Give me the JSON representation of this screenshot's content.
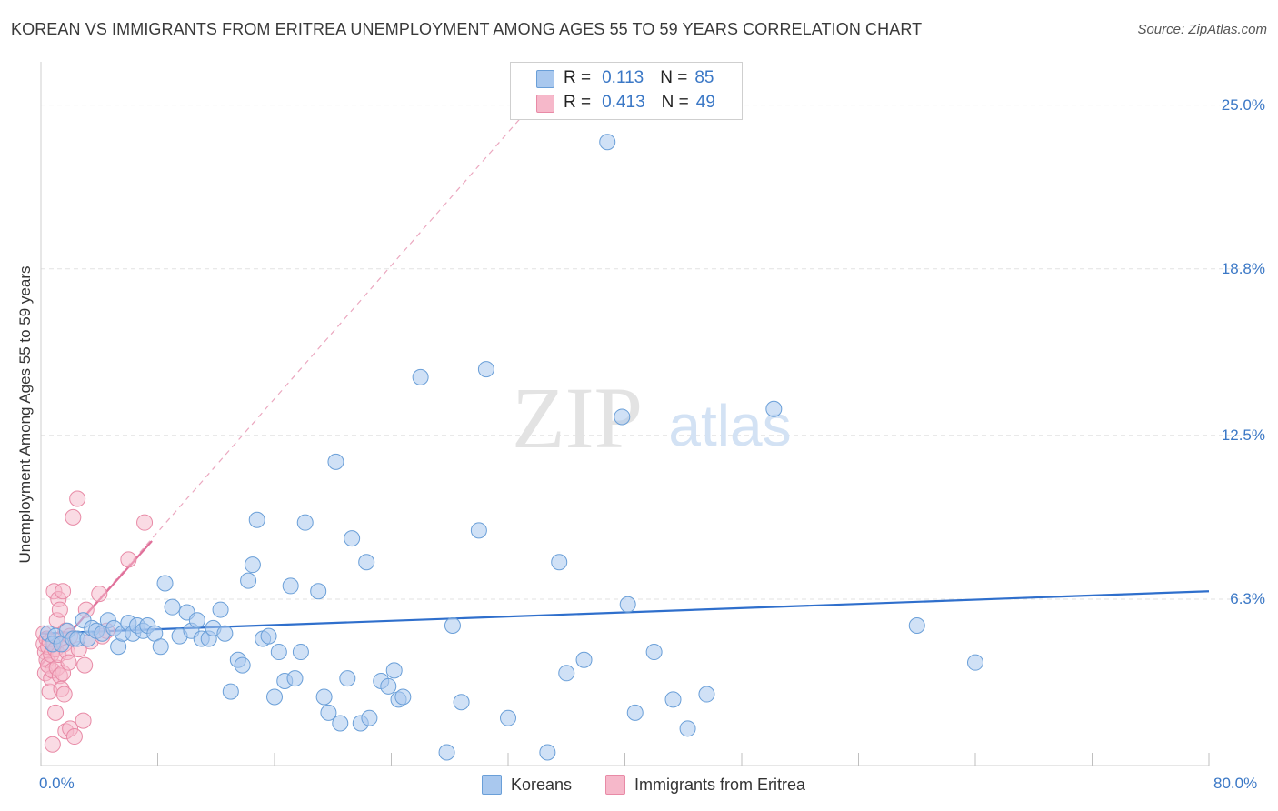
{
  "header": {
    "title": "KOREAN VS IMMIGRANTS FROM ERITREA UNEMPLOYMENT AMONG AGES 55 TO 59 YEARS CORRELATION CHART",
    "source": "Source: ZipAtlas.com"
  },
  "watermark": {
    "zip": "ZIP",
    "atlas": "atlas"
  },
  "legend": {
    "rows": [
      {
        "r_label": "R =",
        "r_value": "0.113",
        "n_label": "N =",
        "n_value": "85"
      },
      {
        "r_label": "R =",
        "r_value": "0.413",
        "n_label": "N =",
        "n_value": "49"
      }
    ]
  },
  "bottom_legend": {
    "koreans": "Koreans",
    "eritrea": "Immigrants from Eritrea"
  },
  "colors": {
    "korean_fill": "#a9c8ee",
    "korean_stroke": "#6a9fd8",
    "korean_line": "#2f6fcc",
    "eritrea_fill": "#f6b8ca",
    "eritrea_stroke": "#e88aa6",
    "eritrea_line": "#e0709a",
    "tick_text": "#3b78c6",
    "grid": "#e2e2e2"
  },
  "chart_data": {
    "type": "scatter",
    "title": "KOREAN VS IMMIGRANTS FROM ERITREA UNEMPLOYMENT AMONG AGES 55 TO 59 YEARS CORRELATION CHART",
    "xlabel": "",
    "ylabel": "Unemployment Among Ages 55 to 59 years",
    "xlim": [
      0,
      80
    ],
    "ylim": [
      0,
      26.5
    ],
    "y_ticks": [
      6.3,
      12.5,
      18.8,
      25.0
    ],
    "y_tick_labels": [
      "6.3%",
      "12.5%",
      "18.8%",
      "25.0%"
    ],
    "x_tick_labels": [
      "0.0%",
      "80.0%"
    ],
    "grid": true,
    "legend_position": "top-center",
    "series": [
      {
        "name": "Koreans",
        "r": 0.113,
        "n": 85,
        "trend": {
          "x": [
            0,
            80
          ],
          "y": [
            5.0,
            6.6
          ]
        },
        "points": [
          [
            0.5,
            5.0
          ],
          [
            0.8,
            4.6
          ],
          [
            1.0,
            4.9
          ],
          [
            1.4,
            4.6
          ],
          [
            1.8,
            5.1
          ],
          [
            2.2,
            4.8
          ],
          [
            2.5,
            4.8
          ],
          [
            2.9,
            5.5
          ],
          [
            3.2,
            4.8
          ],
          [
            3.5,
            5.2
          ],
          [
            3.8,
            5.1
          ],
          [
            4.2,
            5.0
          ],
          [
            4.6,
            5.5
          ],
          [
            5.0,
            5.2
          ],
          [
            5.3,
            4.5
          ],
          [
            5.6,
            5.0
          ],
          [
            6.0,
            5.4
          ],
          [
            6.3,
            5.0
          ],
          [
            6.6,
            5.3
          ],
          [
            7.0,
            5.1
          ],
          [
            7.3,
            5.3
          ],
          [
            7.8,
            5.0
          ],
          [
            8.2,
            4.5
          ],
          [
            8.5,
            6.9
          ],
          [
            9.0,
            6.0
          ],
          [
            9.5,
            4.9
          ],
          [
            10.0,
            5.8
          ],
          [
            10.3,
            5.1
          ],
          [
            10.7,
            5.5
          ],
          [
            11.0,
            4.8
          ],
          [
            11.5,
            4.8
          ],
          [
            11.8,
            5.2
          ],
          [
            12.3,
            5.9
          ],
          [
            12.6,
            5.0
          ],
          [
            13.0,
            2.8
          ],
          [
            13.5,
            4.0
          ],
          [
            13.8,
            3.8
          ],
          [
            14.2,
            7.0
          ],
          [
            14.5,
            7.6
          ],
          [
            14.8,
            9.3
          ],
          [
            15.2,
            4.8
          ],
          [
            15.6,
            4.9
          ],
          [
            16.0,
            2.6
          ],
          [
            16.3,
            4.3
          ],
          [
            16.7,
            3.2
          ],
          [
            17.1,
            6.8
          ],
          [
            17.4,
            3.3
          ],
          [
            17.8,
            4.3
          ],
          [
            18.1,
            9.2
          ],
          [
            19.0,
            6.6
          ],
          [
            19.4,
            2.6
          ],
          [
            19.7,
            2.0
          ],
          [
            20.2,
            11.5
          ],
          [
            20.5,
            1.6
          ],
          [
            21.0,
            3.3
          ],
          [
            21.3,
            8.6
          ],
          [
            21.9,
            1.6
          ],
          [
            22.3,
            7.7
          ],
          [
            22.5,
            1.8
          ],
          [
            23.3,
            3.2
          ],
          [
            23.8,
            3.0
          ],
          [
            24.2,
            3.6
          ],
          [
            24.5,
            2.5
          ],
          [
            24.8,
            2.6
          ],
          [
            26.0,
            14.7
          ],
          [
            27.8,
            0.5
          ],
          [
            28.2,
            5.3
          ],
          [
            28.8,
            2.4
          ],
          [
            30.0,
            8.9
          ],
          [
            30.5,
            15.0
          ],
          [
            32.0,
            1.8
          ],
          [
            34.7,
            0.5
          ],
          [
            35.5,
            7.7
          ],
          [
            36.0,
            3.5
          ],
          [
            37.2,
            4.0
          ],
          [
            38.8,
            23.6
          ],
          [
            39.8,
            13.2
          ],
          [
            40.2,
            6.1
          ],
          [
            40.7,
            2.0
          ],
          [
            42.0,
            4.3
          ],
          [
            43.3,
            2.5
          ],
          [
            44.3,
            1.4
          ],
          [
            45.6,
            2.7
          ],
          [
            50.2,
            13.5
          ],
          [
            60.0,
            5.3
          ],
          [
            64.0,
            3.9
          ]
        ]
      },
      {
        "name": "Immigrants from Eritrea",
        "r": 0.413,
        "n": 49,
        "trend": {
          "x": [
            0,
            7.6
          ],
          "y": [
            3.8,
            8.5
          ]
        },
        "trend_ext": {
          "x": [
            0,
            33
          ],
          "y": [
            3.8,
            24.6
          ]
        },
        "points": [
          [
            0.2,
            5.0
          ],
          [
            0.2,
            4.6
          ],
          [
            0.3,
            4.3
          ],
          [
            0.3,
            3.5
          ],
          [
            0.4,
            4.8
          ],
          [
            0.4,
            4.0
          ],
          [
            0.5,
            4.5
          ],
          [
            0.5,
            3.8
          ],
          [
            0.6,
            2.8
          ],
          [
            0.6,
            4.7
          ],
          [
            0.7,
            4.2
          ],
          [
            0.7,
            3.3
          ],
          [
            0.8,
            0.8
          ],
          [
            0.8,
            3.6
          ],
          [
            0.9,
            4.6
          ],
          [
            0.9,
            6.6
          ],
          [
            1.0,
            2.0
          ],
          [
            1.0,
            4.4
          ],
          [
            1.1,
            5.5
          ],
          [
            1.1,
            3.7
          ],
          [
            1.2,
            6.3
          ],
          [
            1.2,
            4.2
          ],
          [
            1.3,
            5.9
          ],
          [
            1.3,
            3.4
          ],
          [
            1.4,
            4.8
          ],
          [
            1.4,
            2.9
          ],
          [
            1.5,
            6.6
          ],
          [
            1.5,
            3.5
          ],
          [
            1.6,
            4.6
          ],
          [
            1.6,
            2.7
          ],
          [
            1.7,
            1.3
          ],
          [
            1.7,
            5.1
          ],
          [
            1.8,
            4.3
          ],
          [
            1.9,
            3.9
          ],
          [
            2.0,
            4.9
          ],
          [
            2.0,
            1.4
          ],
          [
            2.2,
            9.4
          ],
          [
            2.3,
            1.1
          ],
          [
            2.5,
            10.1
          ],
          [
            2.6,
            4.4
          ],
          [
            2.9,
            1.7
          ],
          [
            3.0,
            3.8
          ],
          [
            3.1,
            5.9
          ],
          [
            3.4,
            4.7
          ],
          [
            4.0,
            6.5
          ],
          [
            4.2,
            4.9
          ],
          [
            4.5,
            5.1
          ],
          [
            6.0,
            7.8
          ],
          [
            7.1,
            9.2
          ]
        ]
      }
    ]
  }
}
